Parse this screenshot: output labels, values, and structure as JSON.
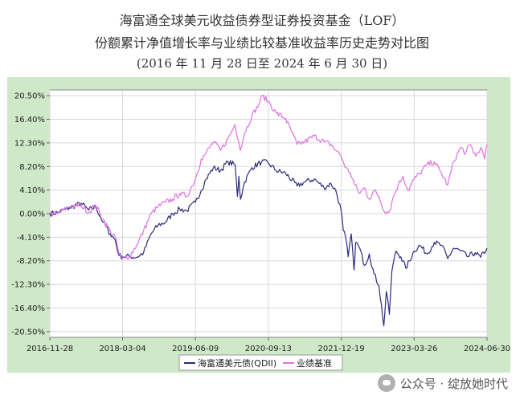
{
  "title_line1": "海富通全球美元收益债券型证券投资基金（LOF）",
  "title_line2": "份额累计净值增长率与业绩比较基准收益率历史走势对比图",
  "title_line3": "(2016 年 11 月 28 日至 2024 年 6 月 30 日)",
  "watermark": "公众号 · 绽放她时代",
  "colors": {
    "plot_bg": "#cfe8c8",
    "fund": "#2b2a7a",
    "benchmark": "#e070e0",
    "grid": "#d8d8d8"
  },
  "chart_data": {
    "type": "line",
    "x_tick_labels": [
      "2016-11-28",
      "2018-03-04",
      "2019-06-09",
      "2020-09-13",
      "2021-12-19",
      "2023-03-26",
      "2024-06-30"
    ],
    "y_tick_labels": [
      "20.50%",
      "16.40%",
      "12.30%",
      "8.20%",
      "4.10%",
      "0.00%",
      "-4.10%",
      "-8.20%",
      "-12.30%",
      "-16.40%",
      "-20.50%"
    ],
    "ylim": [
      -21.5,
      21.5
    ],
    "xlim": [
      "2016-11-28",
      "2024-06-30"
    ],
    "grid": true,
    "legend": "bottom",
    "series": [
      {
        "name": "海富通美元债(QDII)",
        "color": "#2b2a7a",
        "points": [
          [
            "2016-11-28",
            0.0
          ],
          [
            "2017-01-15",
            0.2
          ],
          [
            "2017-04-01",
            1.0
          ],
          [
            "2017-06-15",
            1.8
          ],
          [
            "2017-08-01",
            0.6
          ],
          [
            "2017-09-15",
            1.2
          ],
          [
            "2017-11-01",
            -1.5
          ],
          [
            "2017-12-15",
            -3.5
          ],
          [
            "2018-01-15",
            -4.5
          ],
          [
            "2018-02-10",
            -7.3
          ],
          [
            "2018-03-04",
            -7.5
          ],
          [
            "2018-04-15",
            -7.4
          ],
          [
            "2018-06-01",
            -7.6
          ],
          [
            "2018-07-15",
            -6.8
          ],
          [
            "2018-09-01",
            -3.5
          ],
          [
            "2018-10-15",
            -2.0
          ],
          [
            "2018-12-01",
            -1.5
          ],
          [
            "2019-01-15",
            0.0
          ],
          [
            "2019-03-01",
            0.8
          ],
          [
            "2019-04-15",
            0.5
          ],
          [
            "2019-06-09",
            2.0
          ],
          [
            "2019-07-15",
            4.0
          ],
          [
            "2019-08-15",
            6.0
          ],
          [
            "2019-10-01",
            8.0
          ],
          [
            "2019-11-15",
            7.5
          ],
          [
            "2020-01-01",
            9.0
          ],
          [
            "2020-02-15",
            8.5
          ],
          [
            "2020-03-01",
            3.0
          ],
          [
            "2020-03-10",
            6.5
          ],
          [
            "2020-03-20",
            2.5
          ],
          [
            "2020-04-15",
            5.5
          ],
          [
            "2020-06-01",
            8.0
          ],
          [
            "2020-08-01",
            9.0
          ],
          [
            "2020-09-13",
            8.8
          ],
          [
            "2020-11-01",
            7.5
          ],
          [
            "2021-01-01",
            7.0
          ],
          [
            "2021-03-15",
            4.8
          ],
          [
            "2021-05-01",
            5.5
          ],
          [
            "2021-07-01",
            6.0
          ],
          [
            "2021-09-01",
            4.5
          ],
          [
            "2021-10-15",
            5.2
          ],
          [
            "2021-11-15",
            4.0
          ],
          [
            "2021-12-19",
            0.5
          ],
          [
            "2022-01-01",
            -3.0
          ],
          [
            "2022-01-15",
            -4.0
          ],
          [
            "2022-02-01",
            -7.5
          ],
          [
            "2022-02-20",
            -3.5
          ],
          [
            "2022-03-10",
            -9.8
          ],
          [
            "2022-03-20",
            -5.0
          ],
          [
            "2022-04-15",
            -6.0
          ],
          [
            "2022-05-15",
            -9.0
          ],
          [
            "2022-06-15",
            -7.0
          ],
          [
            "2022-07-15",
            -10.5
          ],
          [
            "2022-08-15",
            -12.5
          ],
          [
            "2022-09-15",
            -19.5
          ],
          [
            "2022-10-01",
            -13.5
          ],
          [
            "2022-10-20",
            -17.5
          ],
          [
            "2022-11-05",
            -10.0
          ],
          [
            "2022-12-01",
            -6.5
          ],
          [
            "2023-01-01",
            -7.5
          ],
          [
            "2023-02-01",
            -9.5
          ],
          [
            "2023-03-26",
            -6.5
          ],
          [
            "2023-05-01",
            -5.5
          ],
          [
            "2023-06-15",
            -7.0
          ],
          [
            "2023-08-01",
            -5.0
          ],
          [
            "2023-09-15",
            -5.5
          ],
          [
            "2023-10-25",
            -7.8
          ],
          [
            "2023-12-01",
            -6.0
          ],
          [
            "2024-01-15",
            -6.5
          ],
          [
            "2024-03-01",
            -7.5
          ],
          [
            "2024-04-15",
            -6.8
          ],
          [
            "2024-05-20",
            -7.6
          ],
          [
            "2024-06-30",
            -6.0
          ]
        ]
      },
      {
        "name": "业绩基准",
        "color": "#e070e0",
        "points": [
          [
            "2016-11-28",
            0.0
          ],
          [
            "2017-01-15",
            0.0
          ],
          [
            "2017-04-01",
            1.2
          ],
          [
            "2017-06-15",
            1.5
          ],
          [
            "2017-08-01",
            0.2
          ],
          [
            "2017-09-15",
            1.5
          ],
          [
            "2017-11-01",
            -1.0
          ],
          [
            "2017-12-15",
            -3.0
          ],
          [
            "2018-01-15",
            -4.0
          ],
          [
            "2018-02-10",
            -7.0
          ],
          [
            "2018-03-04",
            -7.8
          ],
          [
            "2018-04-15",
            -7.5
          ],
          [
            "2018-06-01",
            -5.5
          ],
          [
            "2018-07-15",
            -3.0
          ],
          [
            "2018-09-01",
            0.0
          ],
          [
            "2018-10-15",
            1.2
          ],
          [
            "2018-12-01",
            2.0
          ],
          [
            "2019-01-15",
            2.5
          ],
          [
            "2019-03-01",
            3.5
          ],
          [
            "2019-04-15",
            3.0
          ],
          [
            "2019-06-09",
            6.0
          ],
          [
            "2019-07-15",
            9.5
          ],
          [
            "2019-08-15",
            10.5
          ],
          [
            "2019-10-01",
            12.5
          ],
          [
            "2019-11-15",
            11.0
          ],
          [
            "2020-01-01",
            13.0
          ],
          [
            "2020-02-15",
            15.5
          ],
          [
            "2020-03-10",
            12.5
          ],
          [
            "2020-03-20",
            11.0
          ],
          [
            "2020-04-15",
            14.0
          ],
          [
            "2020-06-01",
            17.0
          ],
          [
            "2020-07-15",
            19.0
          ],
          [
            "2020-08-05",
            20.5
          ],
          [
            "2020-09-13",
            19.5
          ],
          [
            "2020-11-01",
            17.5
          ],
          [
            "2021-01-01",
            16.5
          ],
          [
            "2021-03-15",
            12.0
          ],
          [
            "2021-05-01",
            12.5
          ],
          [
            "2021-07-01",
            13.5
          ],
          [
            "2021-09-01",
            12.5
          ],
          [
            "2021-10-15",
            12.0
          ],
          [
            "2021-11-15",
            11.0
          ],
          [
            "2021-12-19",
            10.0
          ],
          [
            "2022-01-15",
            8.0
          ],
          [
            "2022-02-15",
            7.0
          ],
          [
            "2022-03-15",
            5.0
          ],
          [
            "2022-04-15",
            3.5
          ],
          [
            "2022-05-15",
            4.5
          ],
          [
            "2022-06-15",
            2.5
          ],
          [
            "2022-07-15",
            4.0
          ],
          [
            "2022-08-15",
            3.0
          ],
          [
            "2022-09-15",
            0.5
          ],
          [
            "2022-10-20",
            0.3
          ],
          [
            "2022-11-15",
            3.0
          ],
          [
            "2022-12-15",
            5.0
          ],
          [
            "2023-01-15",
            6.5
          ],
          [
            "2023-02-15",
            4.0
          ],
          [
            "2023-03-26",
            6.0
          ],
          [
            "2023-05-01",
            7.0
          ],
          [
            "2023-06-15",
            8.5
          ],
          [
            "2023-08-01",
            9.0
          ],
          [
            "2023-09-15",
            7.0
          ],
          [
            "2023-10-25",
            5.0
          ],
          [
            "2023-12-01",
            9.0
          ],
          [
            "2024-01-15",
            11.5
          ],
          [
            "2024-02-15",
            10.5
          ],
          [
            "2024-03-15",
            12.0
          ],
          [
            "2024-04-20",
            10.0
          ],
          [
            "2024-05-20",
            11.5
          ],
          [
            "2024-06-15",
            9.5
          ],
          [
            "2024-06-30",
            12.0
          ]
        ]
      }
    ]
  }
}
